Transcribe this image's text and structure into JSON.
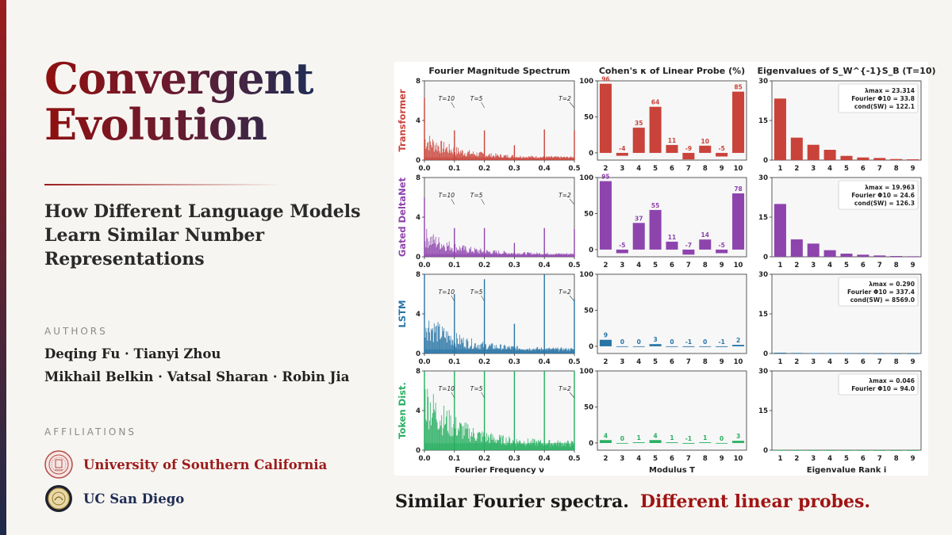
{
  "title_lines": [
    "Convergent",
    "Evolution"
  ],
  "subtitle": "How Different Language Models Learn Similar Number Representations",
  "authors_label": "AUTHORS",
  "authors_lines": [
    "Deqing Fu · Tianyi Zhou",
    "Mikhail Belkin · Vatsal Sharan · Robin Jia"
  ],
  "affiliations_label": "AFFILIATIONS",
  "affiliations": [
    {
      "name": "University of Southern California",
      "color": "#9b1c1c",
      "icon": "usc-seal-icon"
    },
    {
      "name": "UC San Diego",
      "color": "#1f2d55",
      "icon": "ucsd-seal-icon"
    }
  ],
  "caption": {
    "part1": "Similar Fourier spectra.",
    "part2": "Different linear probes."
  },
  "figure": {
    "column_titles": [
      "Fourier Magnitude Spectrum",
      "Cohen's κ of Linear Probe (%)",
      "Eigenvalues of S_W^{-1}S_B (T=10)"
    ],
    "x_labels": [
      "Fourier Frequency ν",
      "Modulus T",
      "Eigenvalue Rank i"
    ],
    "spectrum_x_ticks": [
      "0.0",
      "0.1",
      "0.2",
      "0.3",
      "0.4",
      "0.5"
    ],
    "spectrum_y_ticks": [
      "0",
      "4",
      "8"
    ],
    "spectrum_markers": [
      "T=10",
      "T=5",
      "T=2"
    ],
    "kappa_y_ticks": [
      "0",
      "50",
      "100"
    ],
    "eigen_y_ticks": [
      "0",
      "15",
      "30"
    ],
    "moduli": [
      "2",
      "3",
      "4",
      "5",
      "6",
      "7",
      "8",
      "9",
      "10"
    ],
    "ranks": [
      "1",
      "2",
      "3",
      "4",
      "5",
      "6",
      "7",
      "8",
      "9"
    ]
  },
  "chart_data": [
    {
      "type": "bar",
      "title": "Fourier Magnitude Spectrum",
      "xlabel": "Fourier Frequency ν",
      "xlim": [
        0.0,
        0.5
      ],
      "ylim": [
        0,
        8
      ],
      "annotations": [
        {
          "text": "T=10",
          "x": 0.1
        },
        {
          "text": "T=5",
          "x": 0.2
        },
        {
          "text": "T=2",
          "x": 0.5
        }
      ],
      "series": [
        {
          "name": "Transformer",
          "color": "#c9433a",
          "peaks": [
            [
              0.0,
              6.3
            ],
            [
              0.1,
              3.0
            ],
            [
              0.2,
              3.0
            ],
            [
              0.3,
              1.5
            ],
            [
              0.4,
              3.1
            ],
            [
              0.5,
              3.0
            ]
          ],
          "noise_floor": 0.8
        },
        {
          "name": "Gated DeltaNet",
          "color": "#8e44ad",
          "peaks": [
            [
              0.0,
              6.0
            ],
            [
              0.1,
              2.9
            ],
            [
              0.2,
              2.9
            ],
            [
              0.3,
              1.4
            ],
            [
              0.4,
              2.9
            ],
            [
              0.5,
              2.8
            ]
          ],
          "noise_floor": 0.8
        },
        {
          "name": "LSTM",
          "color": "#2874a6",
          "peaks": [
            [
              0.0,
              8.0
            ],
            [
              0.1,
              6.0
            ],
            [
              0.2,
              7.5
            ],
            [
              0.3,
              3.0
            ],
            [
              0.4,
              8.0
            ],
            [
              0.5,
              5.5
            ]
          ],
          "noise_floor": 1.2
        },
        {
          "name": "Token Dist.",
          "color": "#27ae60",
          "peaks": [
            [
              0.0,
              8.0
            ],
            [
              0.1,
              8.0
            ],
            [
              0.2,
              8.0
            ],
            [
              0.3,
              8.0
            ],
            [
              0.4,
              8.0
            ],
            [
              0.5,
              8.0
            ]
          ],
          "noise_floor": 2.0
        }
      ]
    },
    {
      "type": "bar",
      "title": "Cohen's κ of Linear Probe (%)",
      "xlabel": "Modulus T",
      "categories": [
        "2",
        "3",
        "4",
        "5",
        "6",
        "7",
        "8",
        "9",
        "10"
      ],
      "ylim": [
        -10,
        100
      ],
      "series": [
        {
          "name": "Transformer",
          "color": "#c9433a",
          "values": [
            96,
            -4,
            35,
            64,
            11,
            -9,
            10,
            -5,
            85
          ]
        },
        {
          "name": "Gated DeltaNet",
          "color": "#8e44ad",
          "values": [
            95,
            -5,
            37,
            55,
            11,
            -7,
            14,
            -5,
            78
          ]
        },
        {
          "name": "LSTM",
          "color": "#2874a6",
          "values": [
            9,
            0,
            0,
            3,
            0,
            -1,
            0,
            -1,
            2
          ]
        },
        {
          "name": "Token Dist.",
          "color": "#27ae60",
          "values": [
            4,
            0,
            1,
            4,
            1,
            -1,
            1,
            0,
            3
          ]
        }
      ]
    },
    {
      "type": "bar",
      "title": "Eigenvalues of S_W^{-1}S_B (T=10)",
      "xlabel": "Eigenvalue Rank i",
      "categories": [
        "1",
        "2",
        "3",
        "4",
        "5",
        "6",
        "7",
        "8",
        "9"
      ],
      "ylim": [
        0,
        30
      ],
      "series": [
        {
          "name": "Transformer",
          "color": "#c9433a",
          "values": [
            23.3,
            8.5,
            5.8,
            3.9,
            1.6,
            1.0,
            0.8,
            0.4,
            0.3
          ],
          "stats": [
            "λmax = 23.314",
            "Fourier Φ10 = 33.8",
            "cond(SW) = 122.1"
          ]
        },
        {
          "name": "Gated DeltaNet",
          "color": "#8e44ad",
          "values": [
            20.0,
            6.6,
            5.0,
            2.5,
            1.2,
            0.8,
            0.5,
            0.3,
            0.2
          ],
          "stats": [
            "λmax = 19.963",
            "Fourier Φ10 = 24.6",
            "cond(SW) = 126.3"
          ]
        },
        {
          "name": "LSTM",
          "color": "#2874a6",
          "values": [
            0.29,
            0.2,
            0.15,
            0.1,
            0.08,
            0.06,
            0.05,
            0.04,
            0.03
          ],
          "stats": [
            "λmax = 0.290",
            "Fourier Φ10 = 337.4",
            "cond(SW) = 8569.0"
          ]
        },
        {
          "name": "Token Dist.",
          "color": "#27ae60",
          "values": [
            0.046,
            0.03,
            0.02,
            0.015,
            0.01,
            0.01,
            0.01,
            0.0,
            0.0
          ],
          "stats": [
            "λmax = 0.046",
            "Fourier Φ10 = 94.0"
          ]
        }
      ]
    }
  ]
}
